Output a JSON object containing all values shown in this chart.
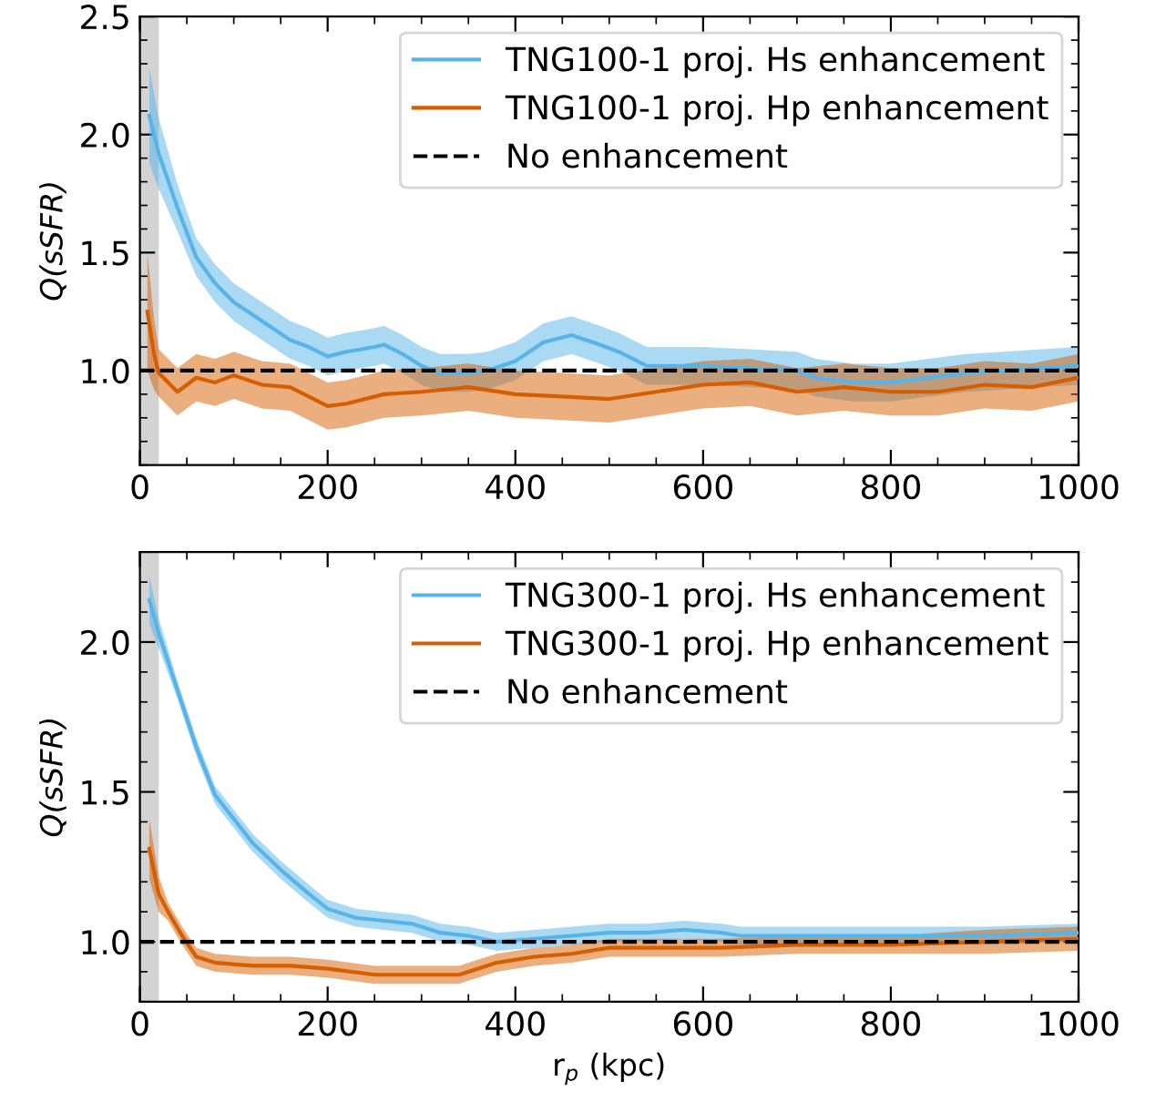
{
  "chart_data": [
    {
      "type": "line",
      "ylabel": "Q(sSFR)",
      "xlim": [
        0,
        1000
      ],
      "xticks": [
        0,
        200,
        400,
        600,
        800,
        1000
      ],
      "ylim": [
        0.6,
        2.5
      ],
      "yticks": [
        {
          "value": 1.0,
          "label": "1.0"
        },
        {
          "value": 1.5,
          "label": "1.5"
        },
        {
          "value": 2.0,
          "label": "2.0"
        },
        {
          "value": 2.5,
          "label": "2.5"
        }
      ],
      "grid": false,
      "legend": "top right",
      "line_style": "solid",
      "marker": "none",
      "series": [
        {
          "name": "TNG100-1 proj. Hs enhancement",
          "color": "#56b4e9",
          "x": [
            10,
            20,
            40,
            60,
            80,
            100,
            130,
            160,
            180,
            200,
            220,
            250,
            260,
            280,
            300,
            320,
            350,
            370,
            400,
            430,
            460,
            490,
            510,
            540,
            560,
            600,
            650,
            700,
            720,
            760,
            800,
            840,
            880,
            920,
            960,
            1000
          ],
          "values": [
            2.08,
            1.92,
            1.69,
            1.48,
            1.37,
            1.29,
            1.21,
            1.13,
            1.1,
            1.06,
            1.08,
            1.1,
            1.11,
            1.07,
            1.02,
            0.99,
            0.99,
            1.0,
            1.04,
            1.12,
            1.15,
            1.11,
            1.08,
            1.02,
            1.02,
            1.02,
            1.01,
            1.0,
            0.97,
            0.95,
            0.95,
            0.97,
            0.99,
            1.0,
            1.01,
            1.02
          ],
          "lower": [
            1.88,
            1.77,
            1.59,
            1.4,
            1.29,
            1.21,
            1.13,
            1.05,
            1.02,
            0.98,
            1.0,
            1.02,
            1.03,
            0.99,
            0.94,
            0.91,
            0.91,
            0.92,
            0.96,
            1.04,
            1.07,
            1.03,
            1.0,
            0.94,
            0.94,
            0.94,
            0.93,
            0.92,
            0.89,
            0.87,
            0.87,
            0.89,
            0.91,
            0.92,
            0.93,
            0.94
          ],
          "upper": [
            2.28,
            2.07,
            1.79,
            1.56,
            1.45,
            1.37,
            1.29,
            1.21,
            1.18,
            1.14,
            1.16,
            1.18,
            1.19,
            1.15,
            1.1,
            1.07,
            1.07,
            1.08,
            1.12,
            1.2,
            1.23,
            1.19,
            1.16,
            1.1,
            1.1,
            1.1,
            1.09,
            1.08,
            1.05,
            1.03,
            1.03,
            1.05,
            1.07,
            1.08,
            1.09,
            1.1
          ]
        },
        {
          "name": "TNG100-1 proj. Hp enhancement",
          "color": "#d55e00",
          "x": [
            8,
            15,
            20,
            40,
            60,
            80,
            100,
            130,
            160,
            200,
            220,
            260,
            300,
            350,
            400,
            450,
            500,
            550,
            600,
            650,
            700,
            750,
            800,
            850,
            900,
            950,
            1000
          ],
          "values": [
            1.25,
            1.07,
            0.99,
            0.91,
            0.97,
            0.95,
            0.98,
            0.94,
            0.93,
            0.85,
            0.86,
            0.9,
            0.91,
            0.93,
            0.9,
            0.89,
            0.88,
            0.91,
            0.94,
            0.95,
            0.91,
            0.93,
            0.91,
            0.91,
            0.94,
            0.93,
            0.97
          ],
          "lower": [
            1.0,
            0.92,
            0.89,
            0.81,
            0.87,
            0.85,
            0.88,
            0.84,
            0.83,
            0.75,
            0.76,
            0.8,
            0.81,
            0.83,
            0.8,
            0.79,
            0.78,
            0.81,
            0.84,
            0.85,
            0.81,
            0.83,
            0.81,
            0.81,
            0.84,
            0.83,
            0.87
          ],
          "upper": [
            1.5,
            1.22,
            1.09,
            1.01,
            1.07,
            1.05,
            1.08,
            1.04,
            1.03,
            0.95,
            0.96,
            1.0,
            1.01,
            1.03,
            1.0,
            0.99,
            0.98,
            1.01,
            1.04,
            1.05,
            1.01,
            1.03,
            1.01,
            1.01,
            1.04,
            1.03,
            1.07
          ]
        }
      ],
      "ref_lines": [
        {
          "axis": "y",
          "value": 1.0,
          "label": "No enhancement",
          "color": "#000000",
          "line_style": "dashed"
        }
      ],
      "bands": [
        {
          "axis": "x",
          "from": 0,
          "to": 20,
          "color": "#d3d3d3"
        }
      ]
    },
    {
      "type": "line",
      "ylabel": "Q(sSFR)",
      "xlabel": "r$_{p}$ (kpc)",
      "xlim": [
        0,
        1000
      ],
      "xticks": [
        0,
        200,
        400,
        600,
        800,
        1000
      ],
      "ylim": [
        0.8,
        2.3
      ],
      "yticks": [
        {
          "value": 1.0,
          "label": "1.0"
        },
        {
          "value": 1.5,
          "label": "1.5"
        },
        {
          "value": 2.0,
          "label": "2.0"
        }
      ],
      "grid": false,
      "legend": "top right",
      "line_style": "solid",
      "marker": "none",
      "series": [
        {
          "name": "TNG300-1 proj. Hs enhancement",
          "color": "#56b4e9",
          "x": [
            10,
            20,
            40,
            60,
            80,
            100,
            120,
            150,
            180,
            200,
            230,
            260,
            290,
            320,
            350,
            380,
            420,
            460,
            500,
            540,
            580,
            620,
            640,
            700,
            800,
            900,
            1000
          ],
          "values": [
            2.14,
            2.03,
            1.84,
            1.65,
            1.49,
            1.41,
            1.33,
            1.24,
            1.16,
            1.11,
            1.08,
            1.07,
            1.06,
            1.03,
            1.02,
            1.0,
            1.01,
            1.02,
            1.03,
            1.03,
            1.04,
            1.03,
            1.02,
            1.02,
            1.02,
            1.02,
            1.03
          ],
          "lower": [
            2.06,
            1.98,
            1.81,
            1.62,
            1.46,
            1.38,
            1.3,
            1.21,
            1.13,
            1.08,
            1.05,
            1.04,
            1.03,
            1.0,
            0.99,
            0.97,
            0.98,
            0.99,
            1.0,
            1.0,
            1.01,
            1.0,
            0.99,
            0.99,
            0.99,
            0.99,
            1.0
          ],
          "upper": [
            2.22,
            2.08,
            1.87,
            1.68,
            1.52,
            1.44,
            1.36,
            1.27,
            1.19,
            1.14,
            1.11,
            1.1,
            1.09,
            1.06,
            1.05,
            1.03,
            1.04,
            1.05,
            1.06,
            1.06,
            1.07,
            1.06,
            1.05,
            1.05,
            1.05,
            1.05,
            1.06
          ]
        },
        {
          "name": "TNG300-1 proj. Hp enhancement",
          "color": "#d55e00",
          "x": [
            10,
            20,
            30,
            45,
            60,
            80,
            120,
            160,
            200,
            250,
            300,
            340,
            380,
            420,
            460,
            500,
            560,
            620,
            700,
            800,
            900,
            1000
          ],
          "values": [
            1.31,
            1.16,
            1.1,
            1.02,
            0.95,
            0.93,
            0.92,
            0.92,
            0.91,
            0.89,
            0.89,
            0.89,
            0.93,
            0.95,
            0.96,
            0.98,
            0.98,
            0.98,
            0.99,
            0.99,
            1.0,
            1.01
          ],
          "lower": [
            1.21,
            1.1,
            1.07,
            0.99,
            0.92,
            0.9,
            0.89,
            0.89,
            0.88,
            0.86,
            0.86,
            0.86,
            0.9,
            0.92,
            0.93,
            0.95,
            0.95,
            0.95,
            0.96,
            0.96,
            0.96,
            0.97
          ],
          "upper": [
            1.41,
            1.22,
            1.13,
            1.05,
            0.98,
            0.96,
            0.95,
            0.95,
            0.94,
            0.92,
            0.92,
            0.92,
            0.96,
            0.98,
            0.99,
            1.01,
            1.01,
            1.01,
            1.02,
            1.02,
            1.04,
            1.05
          ]
        }
      ],
      "ref_lines": [
        {
          "axis": "y",
          "value": 1.0,
          "label": "No enhancement",
          "color": "#000000",
          "line_style": "dashed"
        }
      ],
      "bands": [
        {
          "axis": "x",
          "from": 0,
          "to": 20,
          "color": "#d3d3d3"
        }
      ]
    }
  ]
}
